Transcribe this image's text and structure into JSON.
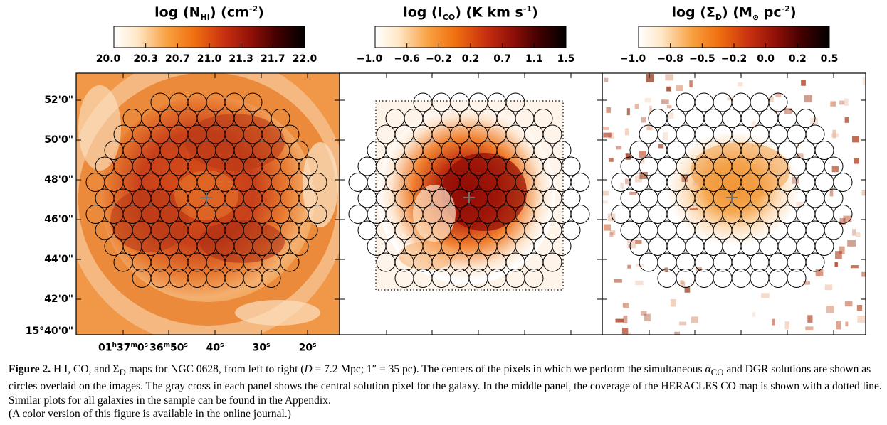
{
  "panels": [
    {
      "title_main": "log (N",
      "title_sub": "HI",
      "title_rest": ") (cm",
      "title_sup": "-2",
      "title_end": ")",
      "ticks": [
        "20.0",
        "20.3",
        "20.7",
        "21.0",
        "21.3",
        "21.7",
        "22.0"
      ],
      "colorbar": "HI"
    },
    {
      "title_main": "log (I",
      "title_sub": "CO",
      "title_rest": ") (K km s",
      "title_sup": "-1",
      "title_end": ")",
      "ticks": [
        "−1.0",
        "−0.6",
        "−0.2",
        "0.2",
        "0.7",
        "1.1",
        "1.5"
      ],
      "colorbar": "CO"
    },
    {
      "title_main": "log (Σ",
      "title_sub": "D",
      "title_rest": ") (M",
      "title_sun": "⊙",
      "title_rest2": " pc",
      "title_sup": "-2",
      "title_end": ")",
      "ticks": [
        "−1.0",
        "−0.8",
        "−0.5",
        "−0.2",
        "0.0",
        "0.2",
        "0.5"
      ],
      "colorbar": "D"
    }
  ],
  "y_axis": [
    "52'0\"",
    "50'0\"",
    "48'0\"",
    "46'0\"",
    "44'0\"",
    "42'0\"",
    "15°40'0\""
  ],
  "x_axis": {
    "l1": "01",
    "l1_sup_h": "h",
    "l1_b": "37",
    "l1_sup_m": "m",
    "l1_c": "0",
    "l1_sup_s": "s",
    "l2": "36",
    "l2_sup_m": "m",
    "l2_b": "50",
    "l2_sup_s": "s",
    "t40": "40",
    "t30": "30",
    "t20": "20",
    "sup_s": "s"
  },
  "caption": {
    "fig": "Figure 2.",
    "text": "H I, CO, and Σ",
    "sub_D": "D",
    "text2": " maps for NGC 0628, from left to right (",
    "D": "D",
    "text3": " = 7.2 Mpc; 1″ = 35 pc). The centers of the pixels in which we perform the simultaneous ",
    "alpha": "α",
    "alpha_sub": "CO",
    "text4": " and DGR solutions are shown as circles overlaid on the images. The gray cross in each panel shows the central solution pixel for the galaxy. In the middle panel, the coverage of the HERACLES CO map is shown with a dotted line. Similar plots for all galaxies in the sample can be found in the Appendix."
  },
  "note": "(A color version of this figure is available in the online journal.)",
  "colors": {
    "dark": "#1a0000",
    "mid": "#c02008",
    "orange": "#f07010",
    "light": "#fff6e6"
  }
}
